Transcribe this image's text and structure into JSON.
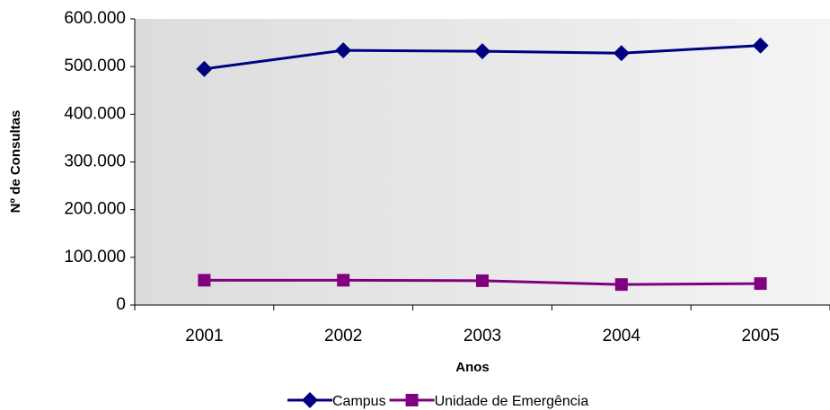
{
  "chart_data": {
    "type": "line",
    "x_label": "Anos",
    "y_label": "Nº de Consultas",
    "categories": [
      "2001",
      "2002",
      "2003",
      "2004",
      "2005"
    ],
    "series": [
      {
        "name": "Campus",
        "color": "#000080",
        "marker": "diamond",
        "values": [
          495000,
          534000,
          532000,
          528000,
          544000
        ]
      },
      {
        "name": "Unidade de Emergência",
        "color": "#800080",
        "marker": "square",
        "values": [
          52000,
          52000,
          51000,
          43000,
          45000
        ]
      }
    ],
    "ylim": [
      0,
      600000
    ],
    "yticks": [
      0,
      {
        "value": 100000,
        "label": "100.000"
      },
      {
        "value": 200000,
        "label": "200.000"
      },
      {
        "value": 300000,
        "label": "300.000"
      },
      {
        "value": 400000,
        "label": "400.000"
      },
      {
        "value": 500000,
        "label": "500.000"
      },
      {
        "value": 600000,
        "label": "600.000"
      }
    ],
    "legend": "bottom"
  }
}
